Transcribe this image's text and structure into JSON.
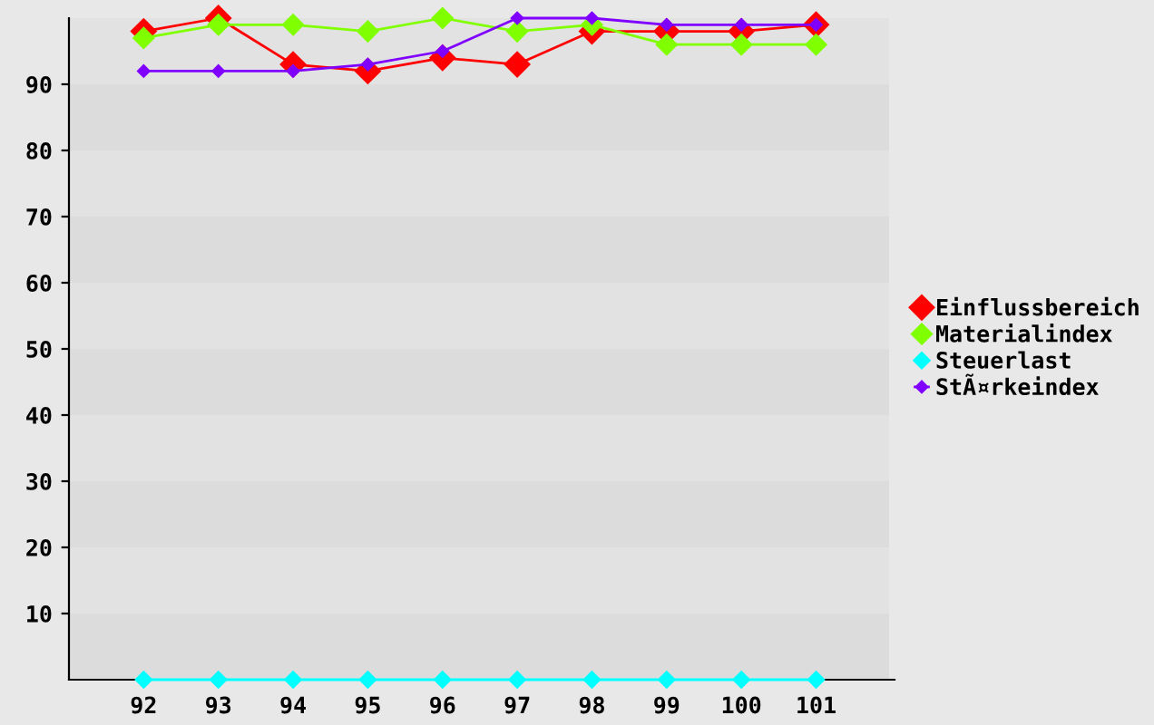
{
  "chart_data": {
    "type": "line",
    "categories": [
      "92",
      "93",
      "94",
      "95",
      "96",
      "97",
      "98",
      "99",
      "100",
      "101"
    ],
    "series": [
      {
        "name": "Einflussbereich",
        "color": "#ff0000",
        "values": [
          98,
          100,
          93,
          92,
          94,
          93,
          98,
          98,
          98,
          99
        ]
      },
      {
        "name": "Materialindex",
        "color": "#80ff00",
        "values": [
          97,
          99,
          99,
          98,
          100,
          98,
          99,
          96,
          96,
          96
        ]
      },
      {
        "name": "Steuerlast",
        "color": "#00ffff",
        "values": [
          0,
          0,
          0,
          0,
          0,
          0,
          0,
          0,
          0,
          0
        ]
      },
      {
        "name": "StÃ¤rkeindex",
        "color": "#8000ff",
        "values": [
          92,
          92,
          92,
          93,
          95,
          100,
          100,
          99,
          99,
          99
        ]
      }
    ],
    "bands": [
      {
        "axis": "y",
        "from": 0,
        "to": 10,
        "color": "#dcdcdc"
      },
      {
        "axis": "y",
        "from": 20,
        "to": 30,
        "color": "#dcdcdc"
      },
      {
        "axis": "y",
        "from": 40,
        "to": 50,
        "color": "#dcdcdc"
      },
      {
        "axis": "y",
        "from": 60,
        "to": 70,
        "color": "#dcdcdc"
      },
      {
        "axis": "y",
        "from": 80,
        "to": 90,
        "color": "#dcdcdc"
      }
    ],
    "ylim": [
      0,
      100
    ],
    "yticks": [
      10,
      20,
      30,
      40,
      50,
      60,
      70,
      80,
      90
    ],
    "legend": "right",
    "marker": "diamond",
    "line_style": "solid"
  }
}
